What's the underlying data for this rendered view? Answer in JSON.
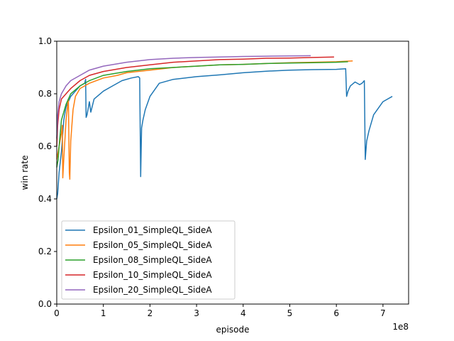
{
  "chart_data": {
    "type": "line",
    "xlabel": "episode",
    "ylabel": "win rate",
    "x_offset_label": "1e8",
    "xlim": [
      0,
      7.55
    ],
    "ylim": [
      0.0,
      1.0
    ],
    "x_ticks": [
      0,
      1,
      2,
      3,
      4,
      5,
      6,
      7
    ],
    "x_tick_labels": [
      "0",
      "1",
      "2",
      "3",
      "4",
      "5",
      "6",
      "7"
    ],
    "y_ticks": [
      0.0,
      0.2,
      0.4,
      0.6,
      0.8,
      1.0
    ],
    "y_tick_labels": [
      "0.0",
      "0.2",
      "0.4",
      "0.6",
      "0.8",
      "1.0"
    ],
    "grid": false,
    "legend_position": "lower-left",
    "series": [
      {
        "name": "Epsilon_01_SimpleQL_SideA",
        "color": "#1f77b4",
        "x": [
          0,
          0.02,
          0.05,
          0.1,
          0.15,
          0.2,
          0.25,
          0.3,
          0.4,
          0.5,
          0.6,
          0.62,
          0.63,
          0.65,
          0.7,
          0.73,
          0.8,
          1.0,
          1.2,
          1.4,
          1.6,
          1.75,
          1.78,
          1.8,
          1.82,
          1.85,
          1.9,
          2.0,
          2.2,
          2.5,
          3.0,
          3.5,
          4.0,
          4.5,
          5.0,
          5.5,
          6.0,
          6.2,
          6.22,
          6.25,
          6.3,
          6.4,
          6.5,
          6.55,
          6.6,
          6.62,
          6.65,
          6.7,
          6.8,
          7.0,
          7.2
        ],
        "y": [
          0.4,
          0.42,
          0.5,
          0.58,
          0.7,
          0.75,
          0.77,
          0.79,
          0.81,
          0.83,
          0.84,
          0.855,
          0.71,
          0.72,
          0.77,
          0.73,
          0.78,
          0.81,
          0.83,
          0.85,
          0.86,
          0.865,
          0.86,
          0.485,
          0.67,
          0.7,
          0.74,
          0.79,
          0.84,
          0.855,
          0.865,
          0.872,
          0.88,
          0.886,
          0.89,
          0.892,
          0.893,
          0.895,
          0.79,
          0.81,
          0.83,
          0.845,
          0.835,
          0.84,
          0.85,
          0.55,
          0.62,
          0.66,
          0.72,
          0.77,
          0.79
        ]
      },
      {
        "name": "Epsilon_05_SimpleQL_SideA",
        "color": "#ff7f0e",
        "x": [
          0,
          0.05,
          0.1,
          0.12,
          0.13,
          0.15,
          0.2,
          0.25,
          0.27,
          0.28,
          0.3,
          0.35,
          0.4,
          0.5,
          0.7,
          1.0,
          1.3,
          1.5,
          2.0,
          2.5,
          3.0,
          3.5,
          4.0,
          4.5,
          5.0,
          5.5,
          6.0,
          6.35
        ],
        "y": [
          0.55,
          0.6,
          0.65,
          0.68,
          0.48,
          0.55,
          0.7,
          0.78,
          0.5,
          0.475,
          0.62,
          0.74,
          0.79,
          0.82,
          0.84,
          0.86,
          0.87,
          0.88,
          0.89,
          0.9,
          0.905,
          0.91,
          0.912,
          0.915,
          0.918,
          0.92,
          0.922,
          0.925
        ]
      },
      {
        "name": "Epsilon_08_SimpleQL_SideA",
        "color": "#2ca02c",
        "x": [
          0,
          0.03,
          0.05,
          0.1,
          0.2,
          0.3,
          0.5,
          0.7,
          1.0,
          1.5,
          2.0,
          2.5,
          3.0,
          3.5,
          4.0,
          4.5,
          5.0,
          5.5,
          6.0,
          6.25
        ],
        "y": [
          0.52,
          0.55,
          0.6,
          0.7,
          0.76,
          0.8,
          0.83,
          0.85,
          0.87,
          0.885,
          0.895,
          0.9,
          0.905,
          0.91,
          0.912,
          0.915,
          0.917,
          0.918,
          0.92,
          0.922
        ]
      },
      {
        "name": "Epsilon_10_SimpleQL_SideA",
        "color": "#d62728",
        "x": [
          0,
          0.02,
          0.05,
          0.1,
          0.2,
          0.3,
          0.5,
          0.7,
          1.0,
          1.5,
          2.0,
          2.5,
          3.0,
          3.5,
          4.0,
          4.5,
          5.0,
          5.5,
          5.95
        ],
        "y": [
          0.6,
          0.68,
          0.74,
          0.78,
          0.8,
          0.82,
          0.85,
          0.87,
          0.885,
          0.9,
          0.91,
          0.92,
          0.925,
          0.93,
          0.932,
          0.935,
          0.936,
          0.938,
          0.94
        ]
      },
      {
        "name": "Epsilon_20_SimpleQL_SideA",
        "color": "#9467bd",
        "x": [
          0,
          0.02,
          0.05,
          0.1,
          0.2,
          0.3,
          0.5,
          0.7,
          1.0,
          1.5,
          2.0,
          2.5,
          3.0,
          3.5,
          4.0,
          4.5,
          5.0,
          5.45
        ],
        "y": [
          0.63,
          0.72,
          0.77,
          0.8,
          0.83,
          0.85,
          0.87,
          0.89,
          0.905,
          0.92,
          0.93,
          0.935,
          0.938,
          0.94,
          0.942,
          0.943,
          0.944,
          0.945
        ]
      }
    ]
  }
}
